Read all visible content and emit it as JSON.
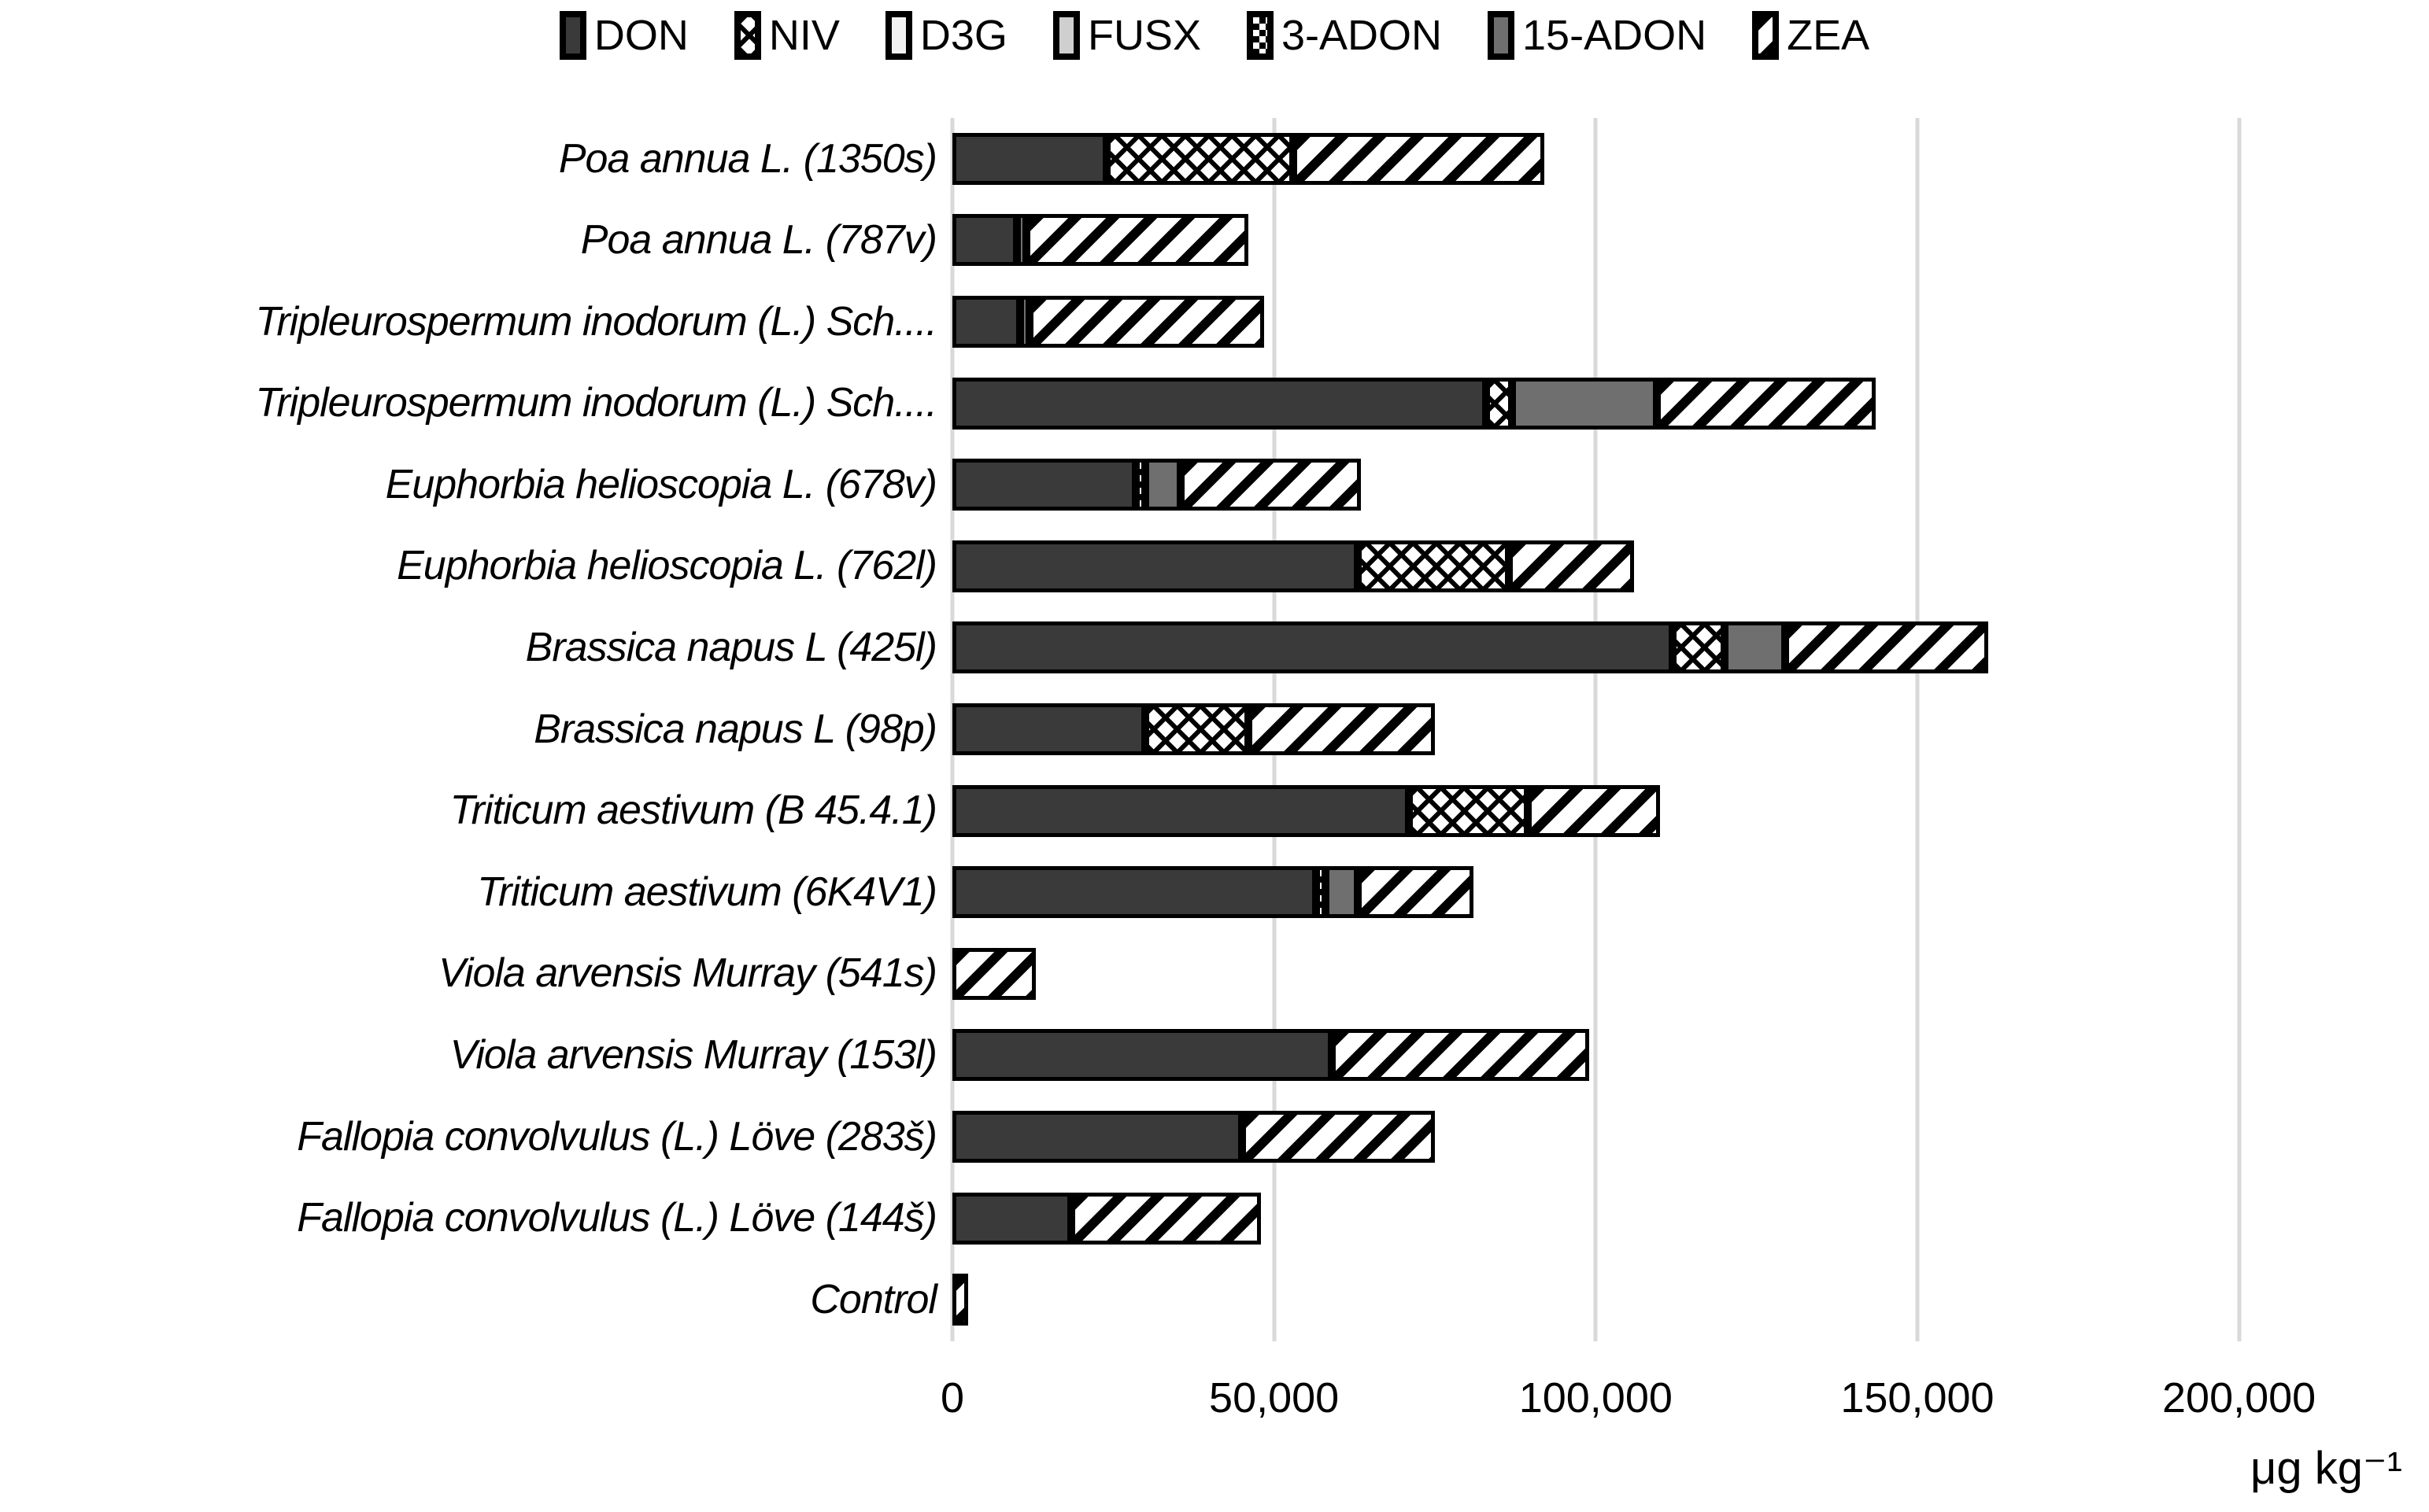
{
  "palette": {
    "don": "#3a3a3a",
    "fifteen_adon": "#6f6f6f",
    "d3g": "#f2f2f2",
    "fusx": "#cfcfcf",
    "pattern_ink": "#000000",
    "gridline": "#d9d9d9",
    "background": "#ffffff"
  },
  "chart_data": {
    "type": "bar",
    "orientation": "horizontal",
    "stacked": true,
    "grid": true,
    "legend_position": "top",
    "xlabel": "μg kg⁻¹",
    "axis_max": 208000,
    "ticks": [
      {
        "label": "0",
        "value": 0
      },
      {
        "label": "50,000",
        "value": 50000
      },
      {
        "label": "100,000",
        "value": 100000
      },
      {
        "label": "150,000",
        "value": 150000
      },
      {
        "label": "200,000",
        "value": 200000
      }
    ],
    "categories": [
      "Poa annua L. (1350s)",
      "Poa annua L. (787v)",
      "Tripleurospermum inodorum (L.) Sch....",
      "Tripleurospermum inodorum (L.) Sch....",
      "Euphorbia helioscopia L. (678v)",
      "Euphorbia helioscopia L. (762l)",
      "Brassica napus L (425l)",
      "Brassica napus L (98p)",
      "Triticum aestivum (B 45.4.1)",
      "Triticum aestivum (6K4V1)",
      "Viola arvensis Murray (541s)",
      "Viola arvensis Murray (153l)",
      "Fallopia convolvulus (L.) Löve (283š)",
      "Fallopia convolvulus (L.) Löve (144š)",
      "Control"
    ],
    "series": [
      {
        "name": "DON",
        "pattern": "don",
        "values": [
          24000,
          10000,
          10500,
          83000,
          28500,
          63000,
          112000,
          30000,
          71000,
          56500,
          0,
          59000,
          45000,
          18500,
          0
        ]
      },
      {
        "name": "NIV",
        "pattern": "niv",
        "values": [
          29000,
          0,
          0,
          4000,
          0,
          23500,
          8000,
          16000,
          18500,
          0,
          0,
          0,
          0,
          0,
          0
        ]
      },
      {
        "name": "D3G",
        "pattern": "d3g",
        "values": [
          0,
          0,
          0,
          0,
          0,
          0,
          0,
          0,
          0,
          0,
          0,
          0,
          0,
          0,
          0
        ]
      },
      {
        "name": "FUSX",
        "pattern": "fusx",
        "values": [
          0,
          0,
          0,
          0,
          0,
          0,
          0,
          0,
          0,
          0,
          0,
          0,
          0,
          0,
          0
        ]
      },
      {
        "name": "3-ADON",
        "pattern": "3-adon",
        "values": [
          0,
          0,
          0,
          0,
          1500,
          0,
          0,
          0,
          0,
          1500,
          0,
          0,
          0,
          0,
          0
        ]
      },
      {
        "name": "15-ADON",
        "pattern": "15-adon",
        "values": [
          0,
          1500,
          1500,
          22500,
          5500,
          0,
          9500,
          0,
          0,
          5000,
          0,
          0,
          0,
          0,
          0
        ]
      },
      {
        "name": "ZEA",
        "pattern": "zea",
        "values": [
          39000,
          34500,
          36500,
          34000,
          28000,
          19500,
          31500,
          29000,
          20500,
          18000,
          13000,
          40000,
          30000,
          29500,
          2500
        ]
      }
    ]
  }
}
